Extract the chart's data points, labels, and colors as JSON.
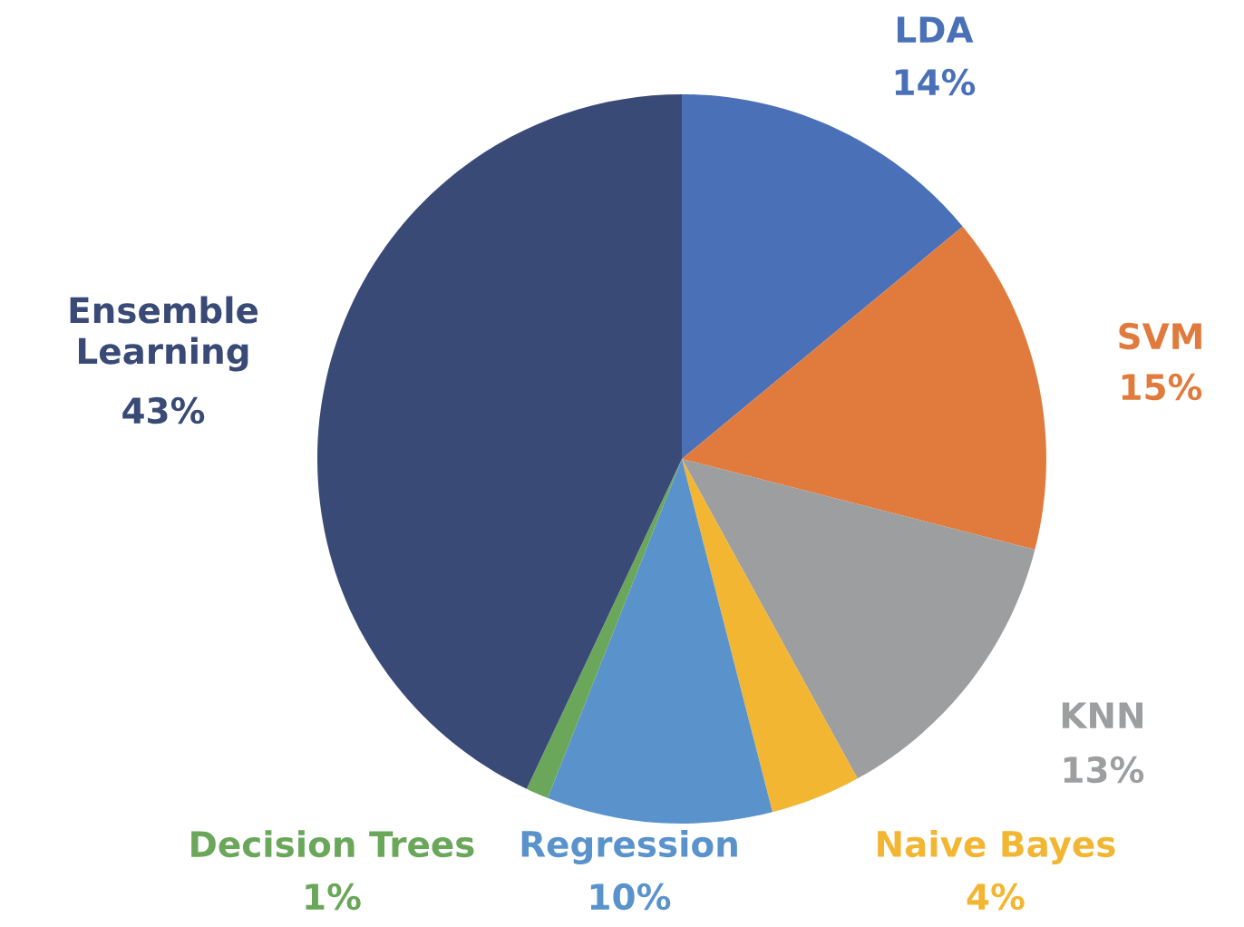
{
  "chart_data": {
    "type": "pie",
    "categories": [
      "LDA",
      "SVM",
      "KNN",
      "Naive Bayes",
      "Regression",
      "Decision Trees",
      "Ensemble Learning"
    ],
    "values": [
      14,
      15,
      13,
      4,
      10,
      1,
      43
    ],
    "colors": [
      "#4a70b8",
      "#e17b3d",
      "#9d9ea0",
      "#f2b632",
      "#5a93cc",
      "#6aa75a",
      "#3a4a76"
    ],
    "value_labels": [
      "14%",
      "15%",
      "13%",
      "4%",
      "10%",
      "1%",
      "43%"
    ]
  }
}
